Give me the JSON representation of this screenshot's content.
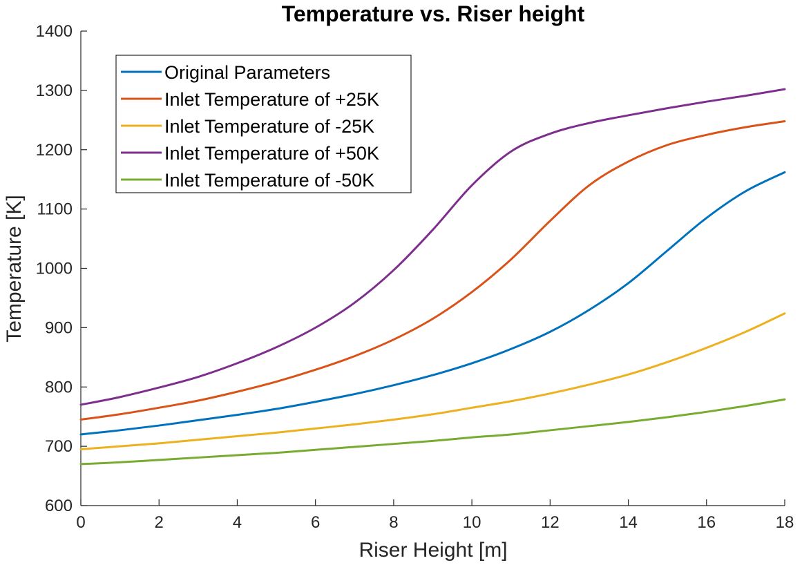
{
  "chart_data": {
    "type": "line",
    "title": "Temperature vs. Riser height",
    "xlabel": "Riser Height [m]",
    "ylabel": "Temperature [K]",
    "xlim": [
      0,
      18
    ],
    "ylim": [
      600,
      1400
    ],
    "xticks": [
      0,
      2,
      4,
      6,
      8,
      10,
      12,
      14,
      16,
      18
    ],
    "yticks": [
      600,
      700,
      800,
      900,
      1000,
      1100,
      1200,
      1300,
      1400
    ],
    "grid": false,
    "legend_position": "top-left",
    "x": [
      0,
      1,
      2,
      3,
      4,
      5,
      6,
      7,
      8,
      9,
      10,
      11,
      12,
      13,
      14,
      15,
      16,
      17,
      18
    ],
    "series": [
      {
        "name": "Original Parameters",
        "color": "#0072BD",
        "values": [
          720,
          727,
          735,
          744,
          753,
          763,
          775,
          788,
          803,
          820,
          840,
          864,
          893,
          930,
          975,
          1030,
          1085,
          1130,
          1162
        ]
      },
      {
        "name": "Inlet Temperature of +25K",
        "color": "#D95319",
        "values": [
          745,
          754,
          765,
          777,
          792,
          809,
          829,
          852,
          880,
          915,
          960,
          1015,
          1080,
          1140,
          1180,
          1208,
          1225,
          1238,
          1248
        ]
      },
      {
        "name": "Inlet Temperature of -25K",
        "color": "#EDB120",
        "values": [
          695,
          700,
          705,
          711,
          717,
          723,
          730,
          737,
          745,
          754,
          765,
          776,
          789,
          804,
          821,
          842,
          866,
          893,
          924
        ]
      },
      {
        "name": "Inlet Temperature of +50K",
        "color": "#7E2F8E",
        "values": [
          770,
          783,
          799,
          817,
          840,
          867,
          900,
          942,
          997,
          1065,
          1140,
          1197,
          1227,
          1245,
          1258,
          1270,
          1281,
          1291,
          1302
        ]
      },
      {
        "name": "Inlet Temperature of -50K",
        "color": "#77AC30",
        "values": [
          670,
          673,
          677,
          681,
          685,
          689,
          694,
          699,
          704,
          709,
          715,
          720,
          727,
          734,
          741,
          749,
          758,
          768,
          779
        ]
      }
    ]
  }
}
